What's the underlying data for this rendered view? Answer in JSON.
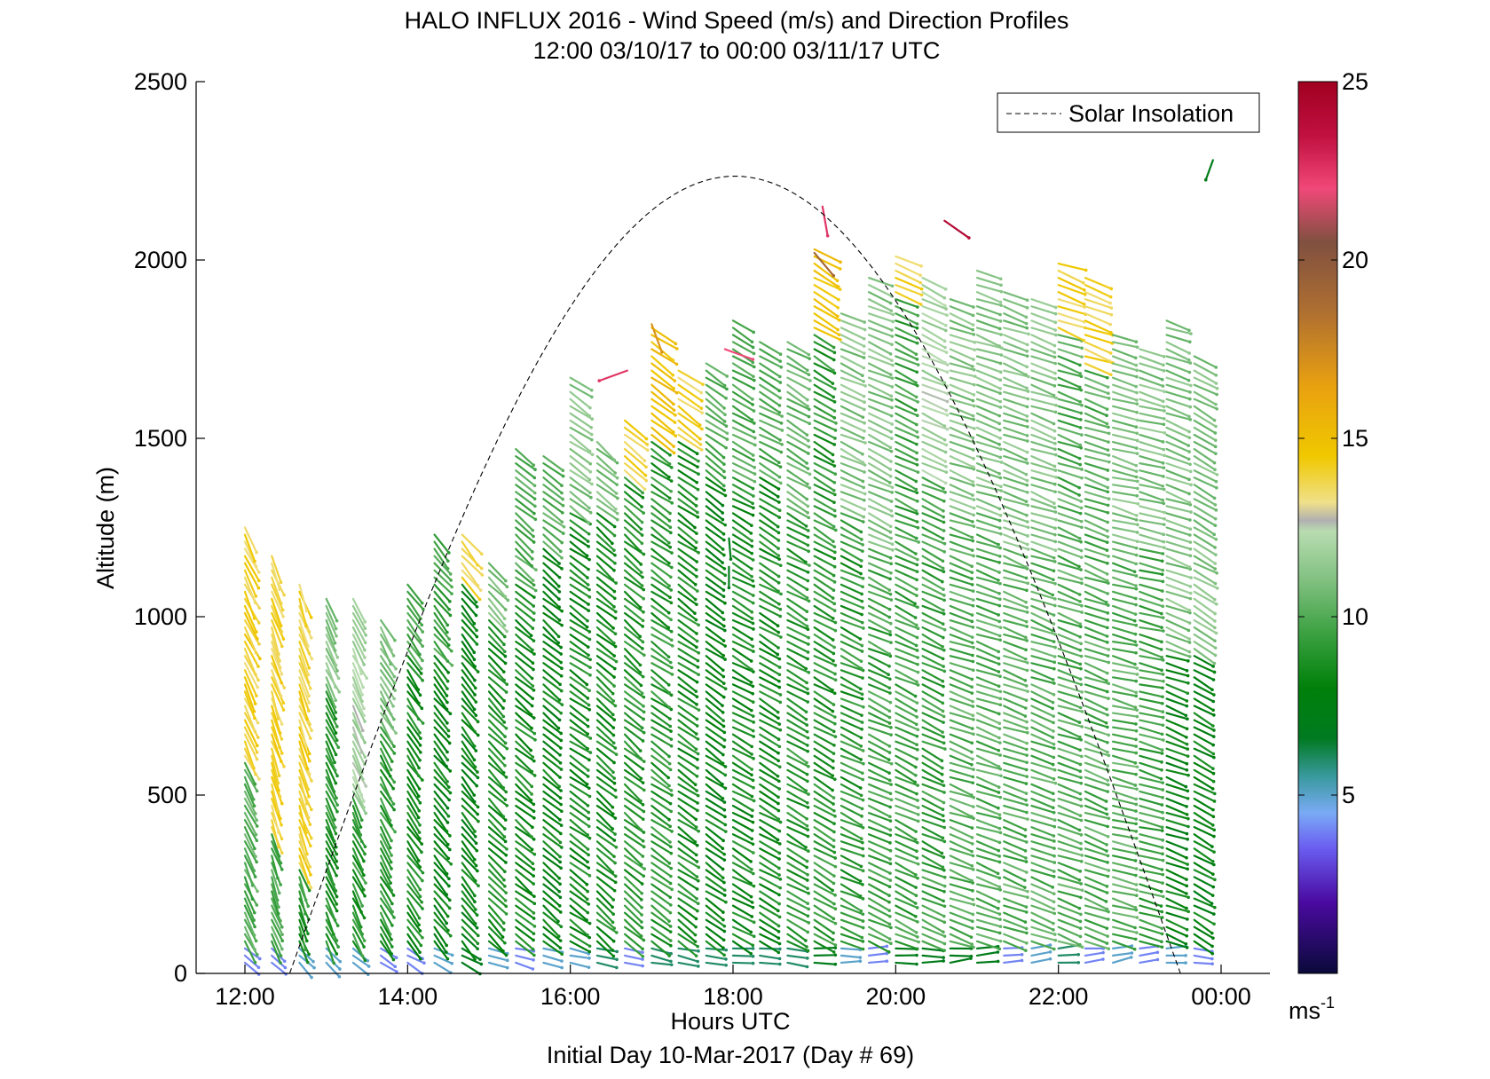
{
  "chart_data": {
    "type": "wind_barb_profile",
    "title": "HALO INFLUX 2016 - Wind Speed (m/s) and Direction Profiles",
    "subtitle": "12:00 03/10/17 to 00:00 03/11/17  UTC",
    "xlabel": "Hours UTC",
    "footer": "Initial Day 10-Mar-2017 (Day # 69)",
    "ylabel": "Altitude (m)",
    "xlim": [
      11.4,
      24.6
    ],
    "ylim": [
      0,
      2500
    ],
    "x_ticks": [
      {
        "value": 12,
        "label": "12:00"
      },
      {
        "value": 14,
        "label": "14:00"
      },
      {
        "value": 16,
        "label": "16:00"
      },
      {
        "value": 18,
        "label": "18:00"
      },
      {
        "value": 20,
        "label": "20:00"
      },
      {
        "value": 22,
        "label": "22:00"
      },
      {
        "value": 24,
        "label": "00:00"
      }
    ],
    "y_ticks": [
      {
        "value": 0,
        "label": "0"
      },
      {
        "value": 500,
        "label": "500"
      },
      {
        "value": 1000,
        "label": "1000"
      },
      {
        "value": 1500,
        "label": "1500"
      },
      {
        "value": 2000,
        "label": "2000"
      },
      {
        "value": 2500,
        "label": "2500"
      }
    ],
    "legend": {
      "label": "Solar Insolation",
      "placement": "top-right",
      "style": "dashed"
    },
    "solar_insolation": {
      "start_hour": 12.55,
      "peak_hour": 18.0,
      "end_hour": 23.5,
      "peak_altitude": 2235
    },
    "colorbar": {
      "range": [
        0,
        25
      ],
      "ticks": [
        {
          "value": 5,
          "label": "5"
        },
        {
          "value": 10,
          "label": "10"
        },
        {
          "value": 15,
          "label": "15"
        },
        {
          "value": 20,
          "label": "20"
        },
        {
          "value": 25,
          "label": "25"
        }
      ],
      "unit_label": "ms",
      "unit_exponent": "-1",
      "stops": [
        {
          "v": 0,
          "color": "#0a0a3a"
        },
        {
          "v": 2,
          "color": "#4a0aa0"
        },
        {
          "v": 3.5,
          "color": "#6a5cf0"
        },
        {
          "v": 4.5,
          "color": "#7aaaf5"
        },
        {
          "v": 5.5,
          "color": "#3a9aa0"
        },
        {
          "v": 6.6,
          "color": "#007a20"
        },
        {
          "v": 8,
          "color": "#00800a"
        },
        {
          "v": 9.5,
          "color": "#3aa040"
        },
        {
          "v": 11,
          "color": "#80c080"
        },
        {
          "v": 12.4,
          "color": "#b8dcb0"
        },
        {
          "v": 12.7,
          "color": "#b0b0b0"
        },
        {
          "v": 13.2,
          "color": "#f0e08a"
        },
        {
          "v": 14.5,
          "color": "#f0c800"
        },
        {
          "v": 16.5,
          "color": "#e8a010"
        },
        {
          "v": 18.5,
          "color": "#b07030"
        },
        {
          "v": 20.5,
          "color": "#805040"
        },
        {
          "v": 22,
          "color": "#f04878"
        },
        {
          "v": 23.5,
          "color": "#c01040"
        },
        {
          "v": 25,
          "color": "#a00020"
        }
      ]
    },
    "profiles": [
      {
        "t": 12.0,
        "top": 1250,
        "low_speed": 4,
        "mid_speed": 10,
        "upper_speed": 14,
        "upper_from": 600,
        "dir": 155
      },
      {
        "t": 12.33,
        "top": 1170,
        "low_speed": 4,
        "mid_speed": 10,
        "upper_speed": 14,
        "upper_from": 400,
        "dir": 160
      },
      {
        "t": 12.67,
        "top": 1090,
        "low_speed": 5,
        "mid_speed": 9,
        "upper_speed": 14,
        "upper_from": 300,
        "dir": 160
      },
      {
        "t": 13.0,
        "top": 1050,
        "low_speed": 5,
        "mid_speed": 9,
        "upper_speed": 11,
        "upper_from": 800,
        "dir": 155
      },
      {
        "t": 13.33,
        "top": 1050,
        "low_speed": 5,
        "mid_speed": 9,
        "upper_speed": 12,
        "upper_from": 500,
        "dir": 155
      },
      {
        "t": 13.67,
        "top": 1000,
        "low_speed": 4,
        "mid_speed": 9,
        "upper_speed": 11,
        "upper_from": 700,
        "dir": 150
      },
      {
        "t": 14.0,
        "top": 1100,
        "low_speed": 4,
        "mid_speed": 8.5,
        "upper_speed": 10,
        "upper_from": 900,
        "dir": 145
      },
      {
        "t": 14.33,
        "top": 1240,
        "low_speed": 5,
        "mid_speed": 8,
        "upper_speed": 9.5,
        "upper_from": 900,
        "dir": 140
      },
      {
        "t": 14.67,
        "top": 1230,
        "low_speed": 7,
        "mid_speed": 8,
        "upper_speed": 14,
        "upper_from": 1100,
        "dir": 140
      },
      {
        "t": 15.0,
        "top": 1160,
        "low_speed": 5,
        "mid_speed": 8.5,
        "upper_speed": 11,
        "upper_from": 1000,
        "dir": 135
      },
      {
        "t": 15.33,
        "top": 1480,
        "low_speed": 4,
        "mid_speed": 8.5,
        "upper_speed": 10,
        "upper_from": 1100,
        "dir": 130
      },
      {
        "t": 15.67,
        "top": 1450,
        "low_speed": 5,
        "mid_speed": 8,
        "upper_speed": 10,
        "upper_from": 1200,
        "dir": 130
      },
      {
        "t": 16.0,
        "top": 1680,
        "low_speed": 5,
        "mid_speed": 8.5,
        "upper_speed": 11,
        "upper_from": 1300,
        "dir": 125
      },
      {
        "t": 16.33,
        "top": 1500,
        "low_speed": 6,
        "mid_speed": 8.5,
        "upper_speed": 11,
        "upper_from": 1300,
        "dir": 130
      },
      {
        "t": 16.67,
        "top": 1560,
        "low_speed": 4,
        "mid_speed": 9,
        "upper_speed": 14,
        "upper_from": 1400,
        "dir": 130
      },
      {
        "t": 17.0,
        "top": 1820,
        "low_speed": 6,
        "mid_speed": 9,
        "upper_speed": 15,
        "upper_from": 1500,
        "dir": 125
      },
      {
        "t": 17.33,
        "top": 1700,
        "low_speed": 6,
        "mid_speed": 8.5,
        "upper_speed": 14,
        "upper_from": 1500,
        "dir": 125
      },
      {
        "t": 17.67,
        "top": 1720,
        "low_speed": 6,
        "mid_speed": 8,
        "upper_speed": 10,
        "upper_from": 1400,
        "dir": 125
      },
      {
        "t": 18.0,
        "top": 1840,
        "low_speed": 6,
        "mid_speed": 8.5,
        "upper_speed": 10,
        "upper_from": 1400,
        "dir": 120
      },
      {
        "t": 18.33,
        "top": 1780,
        "low_speed": 6,
        "mid_speed": 8.5,
        "upper_speed": 10,
        "upper_from": 1400,
        "dir": 120
      },
      {
        "t": 18.67,
        "top": 1780,
        "low_speed": 6,
        "mid_speed": 9,
        "upper_speed": 10.5,
        "upper_from": 1300,
        "dir": 120
      },
      {
        "t": 19.0,
        "top": 2030,
        "low_speed": 7,
        "mid_speed": 9,
        "upper_speed": 15,
        "upper_from": 1800,
        "dir": 120
      },
      {
        "t": 19.33,
        "top": 1850,
        "low_speed": 5,
        "mid_speed": 9,
        "upper_speed": 11,
        "upper_from": 1300,
        "dir": 115
      },
      {
        "t": 19.67,
        "top": 1960,
        "low_speed": 4,
        "mid_speed": 9.5,
        "upper_speed": 11,
        "upper_from": 1200,
        "dir": 115
      },
      {
        "t": 20.0,
        "top": 2010,
        "low_speed": 7,
        "mid_speed": 9.5,
        "upper_speed": 14,
        "upper_from": 1900,
        "dir": 115
      },
      {
        "t": 20.33,
        "top": 1960,
        "low_speed": 7,
        "mid_speed": 9.5,
        "upper_speed": 12,
        "upper_from": 1400,
        "dir": 115
      },
      {
        "t": 20.67,
        "top": 1890,
        "low_speed": 7,
        "mid_speed": 10,
        "upper_speed": 11,
        "upper_from": 1300,
        "dir": 110
      },
      {
        "t": 21.0,
        "top": 1970,
        "low_speed": 7,
        "mid_speed": 10,
        "upper_speed": 11,
        "upper_from": 1300,
        "dir": 110
      },
      {
        "t": 21.33,
        "top": 1920,
        "low_speed": 4,
        "mid_speed": 10,
        "upper_speed": 11,
        "upper_from": 1200,
        "dir": 110
      },
      {
        "t": 21.67,
        "top": 1900,
        "low_speed": 5,
        "mid_speed": 10,
        "upper_speed": 11,
        "upper_from": 1200,
        "dir": 110
      },
      {
        "t": 22.0,
        "top": 1990,
        "low_speed": 6,
        "mid_speed": 10,
        "upper_speed": 14,
        "upper_from": 1800,
        "dir": 110
      },
      {
        "t": 22.33,
        "top": 1960,
        "low_speed": 4,
        "mid_speed": 10,
        "upper_speed": 14,
        "upper_from": 1700,
        "dir": 110
      },
      {
        "t": 22.67,
        "top": 1800,
        "low_speed": 5,
        "mid_speed": 10,
        "upper_speed": 11,
        "upper_from": 1200,
        "dir": 105
      },
      {
        "t": 23.0,
        "top": 1760,
        "low_speed": 4,
        "mid_speed": 9.5,
        "upper_speed": 11,
        "upper_from": 1200,
        "dir": 105
      },
      {
        "t": 23.33,
        "top": 1830,
        "low_speed": 5,
        "mid_speed": 8,
        "upper_speed": 11,
        "upper_from": 900,
        "dir": 110
      },
      {
        "t": 23.67,
        "top": 1740,
        "low_speed": 4,
        "mid_speed": 8,
        "upper_speed": 11,
        "upper_from": 900,
        "dir": 120
      }
    ],
    "highlight_barbs": [
      {
        "t": 16.7,
        "alt": 1690,
        "speed": 22.5,
        "dir": 250
      },
      {
        "t": 17.0,
        "alt": 1820,
        "speed": 17,
        "dir": 160
      },
      {
        "t": 17.9,
        "alt": 1750,
        "speed": 22,
        "dir": 110
      },
      {
        "t": 19.1,
        "alt": 2150,
        "speed": 22.5,
        "dir": 170
      },
      {
        "t": 19.0,
        "alt": 2020,
        "speed": 19,
        "dir": 140
      },
      {
        "t": 20.6,
        "alt": 2110,
        "speed": 24,
        "dir": 125
      },
      {
        "t": 23.9,
        "alt": 2280,
        "speed": 7,
        "dir": 200
      },
      {
        "t": 17.95,
        "alt": 1220,
        "speed": 7,
        "dir": 175
      },
      {
        "t": 17.95,
        "alt": 1140,
        "speed": 7,
        "dir": 180
      }
    ]
  }
}
